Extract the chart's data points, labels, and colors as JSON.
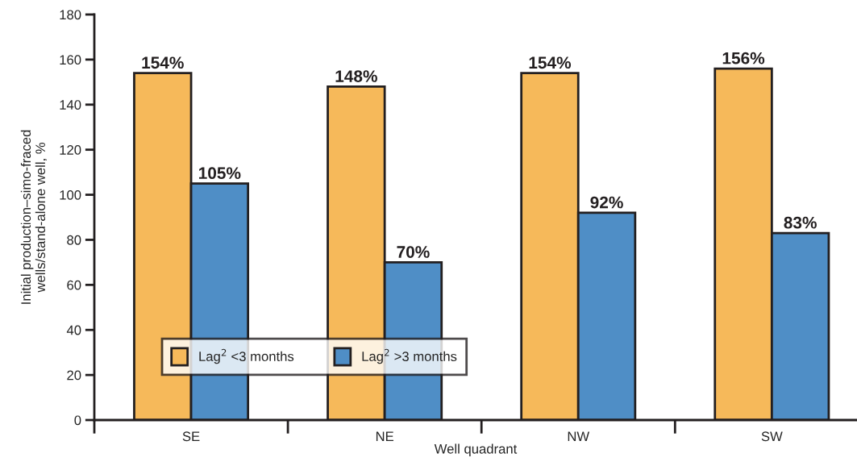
{
  "chart_data": {
    "type": "bar",
    "xlabel": "Well quadrant",
    "ylabel": "Initial production–simo-fraced\nwells/stand-alone well, %",
    "categories": [
      "SE",
      "NE",
      "NW",
      "SW"
    ],
    "series": [
      {
        "name": "Lag$^{2}$ <3 months",
        "color": "#f6b95a",
        "values": [
          154,
          148,
          154,
          156
        ],
        "value_labels": [
          "154%",
          "148%",
          "154%",
          "156%"
        ]
      },
      {
        "name": "Lag$^{2}$ >3 months",
        "color": "#4f8ec6",
        "values": [
          105,
          70,
          92,
          83
        ],
        "value_labels": [
          "105%",
          "70%",
          "92%",
          "83%"
        ]
      }
    ],
    "ylim": [
      0,
      180
    ],
    "yticks": [
      0,
      20,
      40,
      60,
      80,
      100,
      120,
      140,
      160,
      180
    ],
    "grid": false,
    "legend": "bottom left"
  }
}
